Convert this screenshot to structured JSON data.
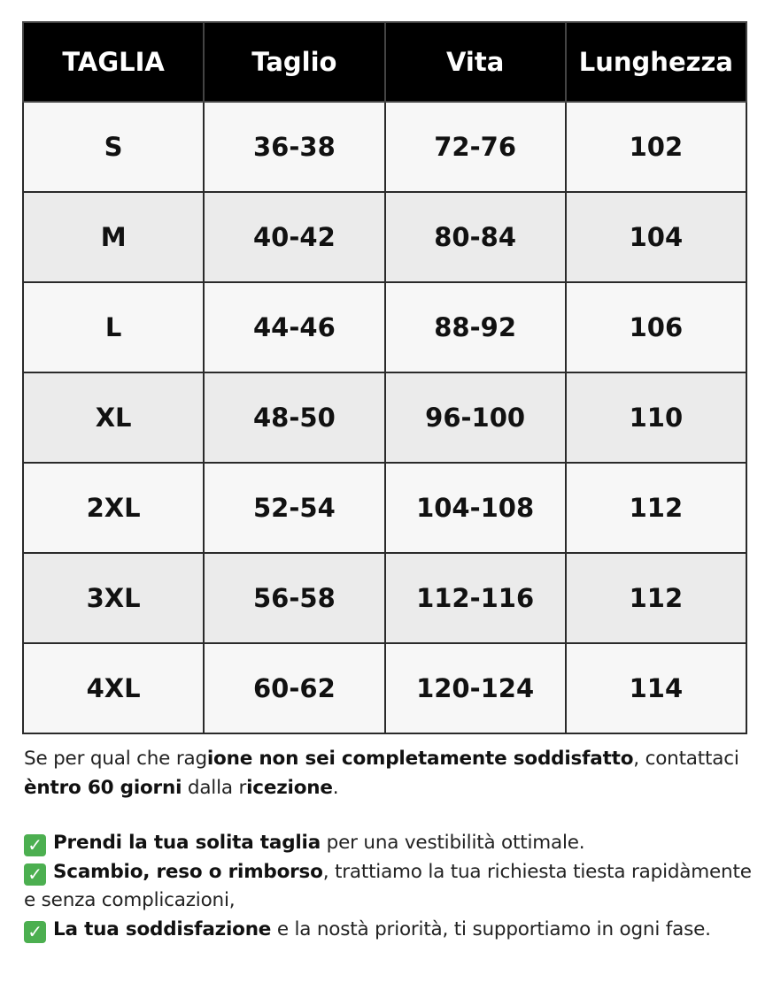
{
  "table": {
    "headers": [
      "TAGLIA",
      "Taglio",
      "Vita",
      "Lunghezza"
    ],
    "rows": [
      [
        "S",
        "36-38",
        "72-76",
        "102"
      ],
      [
        "M",
        "40-42",
        "80-84",
        "104"
      ],
      [
        "L",
        "44-46",
        "88-92",
        "106"
      ],
      [
        "XL",
        "48-50",
        "96-100",
        "110"
      ],
      [
        "2XL",
        "52-54",
        "104-108",
        "112"
      ],
      [
        "3XL",
        "56-58",
        "112-116",
        "112"
      ],
      [
        "4XL",
        "60-62",
        "120-124",
        "114"
      ]
    ]
  },
  "notes": {
    "intro": [
      {
        "t": "Se per qual che rag",
        "b": false
      },
      {
        "t": "ione non sei completamente soddisfatto",
        "b": true
      },
      {
        "t": ", ",
        "b": false
      },
      {
        "t": "contattaci ",
        "b": false
      },
      {
        "t": "èntro 60 giorni",
        "b": true
      },
      {
        "t": " dalla r",
        "b": false
      },
      {
        "t": "icezione",
        "b": true
      },
      {
        "t": ".",
        "b": false
      }
    ],
    "bullets": [
      {
        "icon": "check-mark-button-icon",
        "parts": [
          {
            "t": "Prendi la tua solita taglia",
            "b": true
          },
          {
            "t": " per una vestibilità ottimale.",
            "b": false
          }
        ]
      },
      {
        "icon": "check-mark-button-icon",
        "parts": [
          {
            "t": "Scambio, reso o rimborso",
            "b": true
          },
          {
            "t": ", trattiamo la tua richiesta tiesta rapidàmente e senza complicazioni,",
            "b": false
          }
        ]
      },
      {
        "icon": "check-mark-button-icon",
        "parts": [
          {
            "t": "La tua soddisfazione",
            "b": true
          },
          {
            "t": " e la nostà priorità, ti supportiamo in ogni fase.",
            "b": false
          }
        ]
      }
    ]
  },
  "colors": {
    "header_bg": "#000000",
    "row_light": "#f7f7f7",
    "row_dark": "#ebebeb",
    "check": "#4caf50"
  }
}
